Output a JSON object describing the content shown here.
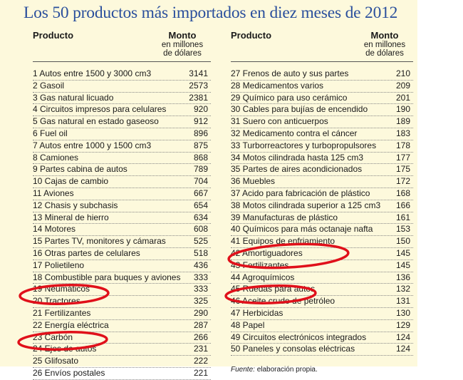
{
  "title": "Los 50 productos más importados en diez meses de 2012",
  "headers": {
    "product": "Producto",
    "amount": "Monto",
    "amount_sub1": "en millones",
    "amount_sub2": "de dólares"
  },
  "left_rows": [
    {
      "name": "1 Autos entre 1500 y 3000 cm3",
      "value": "3141"
    },
    {
      "name": "2 Gasoil",
      "value": "2573"
    },
    {
      "name": "3 Gas natural licuado",
      "value": "2381"
    },
    {
      "name": "4 Circuitos impresos para celulares",
      "value": "920"
    },
    {
      "name": "5 Gas natural en estado gaseoso",
      "value": "912"
    },
    {
      "name": "6 Fuel oil",
      "value": "896"
    },
    {
      "name": "7 Autos entre 1000 y 1500 cm3",
      "value": "875"
    },
    {
      "name": "8 Camiones",
      "value": "868"
    },
    {
      "name": "9 Partes cabina de autos",
      "value": "789"
    },
    {
      "name": "10 Cajas de cambio",
      "value": "704"
    },
    {
      "name": "11 Aviones",
      "value": "667"
    },
    {
      "name": "12 Chasis y subchasis",
      "value": "654"
    },
    {
      "name": "13 Mineral de hierro",
      "value": "634"
    },
    {
      "name": "14 Motores",
      "value": "608"
    },
    {
      "name": "15 Partes TV, monitores y cámaras",
      "value": "525"
    },
    {
      "name": "16 Otras partes de celulares",
      "value": "518"
    },
    {
      "name": "17 Polietileno",
      "value": "436"
    },
    {
      "name": "18 Combustible para buques y aviones",
      "value": "333"
    },
    {
      "name": "19 Neumáticos",
      "value": "333"
    },
    {
      "name": "20 Tractores",
      "value": "325"
    },
    {
      "name": "21 Fertilizantes",
      "value": "290"
    },
    {
      "name": "22 Energía eléctrica",
      "value": "287"
    },
    {
      "name": "23 Carbón",
      "value": "266"
    },
    {
      "name": "24 Ejes de autos",
      "value": "231"
    },
    {
      "name": "25 Glifosato",
      "value": "222"
    },
    {
      "name": "26 Envíos postales",
      "value": "221"
    }
  ],
  "right_rows": [
    {
      "name": "27 Frenos de auto y sus partes",
      "value": "210"
    },
    {
      "name": "28 Medicamentos varios",
      "value": "209"
    },
    {
      "name": "29 Químico para uso cerámico",
      "value": "201"
    },
    {
      "name": "30 Cables para bujías de encendido",
      "value": "190"
    },
    {
      "name": "31 Suero con anticuerpos",
      "value": "189"
    },
    {
      "name": "32 Medicamento contra el cáncer",
      "value": "183"
    },
    {
      "name": "33 Turborreactores y turbopropulsores",
      "value": "178"
    },
    {
      "name": "34 Motos cilindrada hasta 125 cm3",
      "value": "177"
    },
    {
      "name": "35 Partes de aires acondicionados",
      "value": "175"
    },
    {
      "name": "36 Muebles",
      "value": "172"
    },
    {
      "name": "37 Acido para fabricación de plástico",
      "value": "168"
    },
    {
      "name": "38 Motos cilindrada superior a 125 cm3",
      "value": "166"
    },
    {
      "name": "39 Manufacturas de plástico",
      "value": "161"
    },
    {
      "name": "40 Químicos para más octanaje nafta",
      "value": "153"
    },
    {
      "name": "41 Equipos de enfriamiento",
      "value": "150"
    },
    {
      "name": "42 Amortiguadores",
      "value": "145"
    },
    {
      "name": "43 Fertilizantes",
      "value": "145"
    },
    {
      "name": "44 Agroquímicos",
      "value": "136"
    },
    {
      "name": "45 Ruedas para autos",
      "value": "132"
    },
    {
      "name": "46 Aceite crudo de petróleo",
      "value": "131"
    },
    {
      "name": "47 Herbicidas",
      "value": "130"
    },
    {
      "name": "48 Papel",
      "value": "129"
    },
    {
      "name": "49 Circuitos electrónicos integrados",
      "value": "124"
    },
    {
      "name": "50 Paneles y consolas eléctricas",
      "value": "124"
    }
  ],
  "footnote": {
    "label": "Fuente:",
    "text": " elaboración propia."
  },
  "colors": {
    "background": "#fdf9dc",
    "title": "#2a4f9c",
    "highlight_ovals": "#e0101a"
  },
  "highlighted_items": [
    "21 Fertilizantes",
    "25 Glifosato",
    "43 Fertilizantes",
    "44 Agroquímicos",
    "47 Herbicidas"
  ]
}
